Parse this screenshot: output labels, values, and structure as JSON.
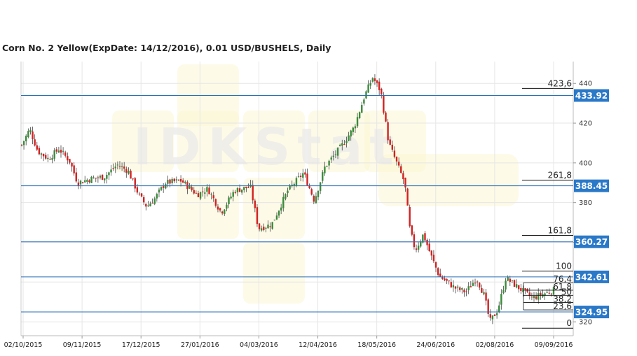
{
  "title": "Corn  No. 2 Yellow(ExpDate: 14/12/2016), 0.01 USD/BUSHELS, Daily",
  "watermark": "IDKStat",
  "colors": {
    "up": "#3a8a3a",
    "down": "#d42020",
    "level_line": "#2a6fb5",
    "badge_bg": "#2a78c8",
    "grid": "#e6e6e6"
  },
  "chart_data": {
    "type": "candlestick",
    "title": "Corn  No. 2 Yellow(ExpDate: 14/12/2016), 0.01 USD/BUSHELS, Daily",
    "ylim": [
      313,
      451
    ],
    "yticks": [
      320,
      340,
      360,
      380,
      400,
      420,
      440
    ],
    "ytick_labels": [
      "320",
      "",
      "",
      "380",
      "400",
      "420",
      "440"
    ],
    "xtick_labels": [
      "02/10/2015",
      "09/11/2015",
      "17/12/2015",
      "27/01/2016",
      "04/03/2016",
      "12/04/2016",
      "18/05/2016",
      "24/06/2016",
      "02/08/2016",
      "09/09/2016"
    ],
    "grid": true,
    "price_levels": [
      {
        "value": 433.92,
        "label": "433.92"
      },
      {
        "value": 388.45,
        "label": "388.45"
      },
      {
        "value": 360.27,
        "label": "360.27"
      },
      {
        "value": 342.61,
        "label": "342.61"
      },
      {
        "value": 324.95,
        "label": "324.95"
      }
    ],
    "fibonacci_extension": [
      {
        "label": "423,6",
        "value": 437.5
      },
      {
        "label": "261,8",
        "value": 391.3
      },
      {
        "label": "161,8",
        "value": 363.5
      },
      {
        "label": "100",
        "value": 345.5
      },
      {
        "label": "0",
        "value": 316.8
      }
    ],
    "fibonacci_retracement": [
      {
        "label": "76,4",
        "value": 339.7
      },
      {
        "label": "61,8",
        "value": 335.9
      },
      {
        "label": "50",
        "value": 333.3
      },
      {
        "label": "38,2",
        "value": 329.7
      },
      {
        "label": "23,6",
        "value": 326.0
      }
    ],
    "close_path": [
      {
        "t": 0.0,
        "v": 409
      },
      {
        "t": 0.015,
        "v": 417
      },
      {
        "t": 0.03,
        "v": 406
      },
      {
        "t": 0.05,
        "v": 402
      },
      {
        "t": 0.07,
        "v": 407
      },
      {
        "t": 0.09,
        "v": 401
      },
      {
        "t": 0.105,
        "v": 390
      },
      {
        "t": 0.13,
        "v": 392
      },
      {
        "t": 0.155,
        "v": 393
      },
      {
        "t": 0.18,
        "v": 399
      },
      {
        "t": 0.2,
        "v": 396
      },
      {
        "t": 0.22,
        "v": 384
      },
      {
        "t": 0.235,
        "v": 378
      },
      {
        "t": 0.25,
        "v": 382
      },
      {
        "t": 0.27,
        "v": 390
      },
      {
        "t": 0.3,
        "v": 391
      },
      {
        "t": 0.33,
        "v": 384
      },
      {
        "t": 0.35,
        "v": 387
      },
      {
        "t": 0.375,
        "v": 375
      },
      {
        "t": 0.4,
        "v": 386
      },
      {
        "t": 0.43,
        "v": 388
      },
      {
        "t": 0.445,
        "v": 367
      },
      {
        "t": 0.47,
        "v": 369
      },
      {
        "t": 0.5,
        "v": 386
      },
      {
        "t": 0.53,
        "v": 395
      },
      {
        "t": 0.55,
        "v": 381
      },
      {
        "t": 0.57,
        "v": 398
      },
      {
        "t": 0.6,
        "v": 408
      },
      {
        "t": 0.625,
        "v": 418
      },
      {
        "t": 0.645,
        "v": 434
      },
      {
        "t": 0.66,
        "v": 443
      },
      {
        "t": 0.675,
        "v": 436
      },
      {
        "t": 0.69,
        "v": 410
      },
      {
        "t": 0.705,
        "v": 400
      },
      {
        "t": 0.72,
        "v": 390
      },
      {
        "t": 0.73,
        "v": 366
      },
      {
        "t": 0.74,
        "v": 356
      },
      {
        "t": 0.755,
        "v": 364
      },
      {
        "t": 0.77,
        "v": 353
      },
      {
        "t": 0.785,
        "v": 343
      },
      {
        "t": 0.8,
        "v": 340
      },
      {
        "t": 0.815,
        "v": 337
      },
      {
        "t": 0.835,
        "v": 335
      },
      {
        "t": 0.855,
        "v": 342
      },
      {
        "t": 0.87,
        "v": 333
      },
      {
        "t": 0.88,
        "v": 320
      },
      {
        "t": 0.895,
        "v": 326
      },
      {
        "t": 0.91,
        "v": 342
      },
      {
        "t": 0.935,
        "v": 337
      },
      {
        "t": 0.96,
        "v": 332
      },
      {
        "t": 1.0,
        "v": 336
      }
    ]
  }
}
